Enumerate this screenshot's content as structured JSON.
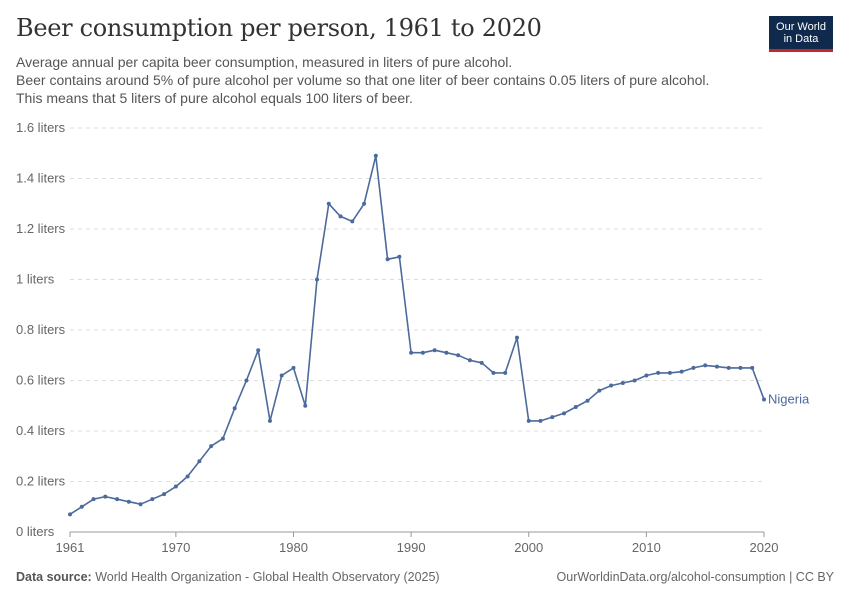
{
  "header": {
    "title": "Beer consumption per person, 1961 to 2020",
    "subtitle_line1": "Average annual per capita beer consumption, measured in liters of pure alcohol.",
    "subtitle_line2": "Beer contains around 5% of pure alcohol per volume so that one liter of beer contains 0.05 liters of pure alcohol. This means that 5 liters of pure alcohol equals 100 liters of beer."
  },
  "logo": {
    "line1": "Our World",
    "line2": "in Data",
    "bg_color": "#0f2a4d",
    "accent_color": "#c1272d"
  },
  "footer": {
    "source_label": "Data source:",
    "source_text": "World Health Organization - Global Health Observatory (2025)",
    "right_text": "OurWorldinData.org/alcohol-consumption | CC BY"
  },
  "chart_data": {
    "type": "line",
    "xlim": [
      1961,
      2020
    ],
    "ylim": [
      0,
      1.6
    ],
    "x_ticks": [
      1961,
      1970,
      1980,
      1990,
      2000,
      2010,
      2020
    ],
    "y_ticks": [
      {
        "value": 0,
        "label": "0 liters"
      },
      {
        "value": 0.2,
        "label": "0.2 liters"
      },
      {
        "value": 0.4,
        "label": "0.4 liters"
      },
      {
        "value": 0.6,
        "label": "0.6 liters"
      },
      {
        "value": 0.8,
        "label": "0.8 liters"
      },
      {
        "value": 1,
        "label": "1 liters"
      },
      {
        "value": 1.2,
        "label": "1.2 liters"
      },
      {
        "value": 1.4,
        "label": "1.4 liters"
      },
      {
        "value": 1.6,
        "label": "1.6 liters"
      }
    ],
    "grid": "horizontal-dashed",
    "series": [
      {
        "name": "Nigeria",
        "color": "#4c6a9c",
        "x": [
          1961,
          1962,
          1963,
          1964,
          1965,
          1966,
          1967,
          1968,
          1969,
          1970,
          1971,
          1972,
          1973,
          1974,
          1975,
          1976,
          1977,
          1978,
          1979,
          1980,
          1981,
          1982,
          1983,
          1984,
          1985,
          1986,
          1987,
          1988,
          1989,
          1990,
          1991,
          1992,
          1993,
          1994,
          1995,
          1996,
          1997,
          1998,
          1999,
          2000,
          2001,
          2002,
          2003,
          2004,
          2005,
          2006,
          2007,
          2008,
          2009,
          2010,
          2011,
          2012,
          2013,
          2014,
          2015,
          2016,
          2017,
          2018,
          2019,
          2020
        ],
        "values": [
          0.07,
          0.1,
          0.13,
          0.14,
          0.13,
          0.12,
          0.11,
          0.13,
          0.15,
          0.18,
          0.22,
          0.28,
          0.34,
          0.37,
          0.49,
          0.6,
          0.72,
          0.44,
          0.62,
          0.65,
          0.5,
          1.0,
          1.3,
          1.25,
          1.23,
          1.3,
          1.49,
          1.08,
          1.09,
          0.71,
          0.71,
          0.72,
          0.71,
          0.7,
          0.68,
          0.67,
          0.63,
          0.63,
          0.77,
          0.44,
          0.44,
          0.455,
          0.47,
          0.495,
          0.52,
          0.56,
          0.58,
          0.59,
          0.6,
          0.62,
          0.63,
          0.63,
          0.635,
          0.65,
          0.66,
          0.655,
          0.65,
          0.65,
          0.65,
          0.525
        ]
      }
    ]
  }
}
